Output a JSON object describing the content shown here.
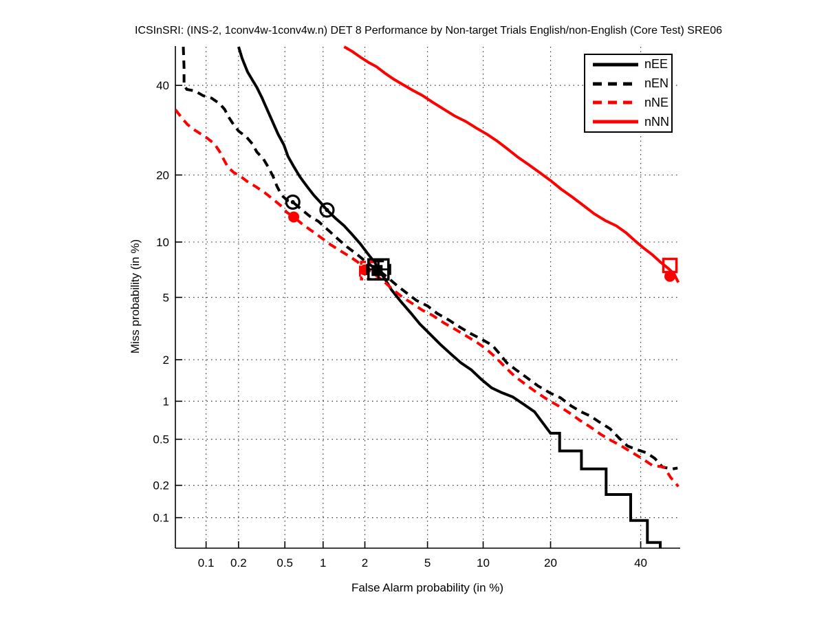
{
  "title": "ICSInSRI: (INS-2, 1conv4w-1conv4w.n) DET 8 Performance by Non-target Trials English/non-English (Core Test) SRE06",
  "legend": {
    "items": [
      {
        "label": "nEE"
      },
      {
        "label": "nEN"
      },
      {
        "label": "nNE"
      },
      {
        "label": "nNN"
      }
    ]
  },
  "chart_data": {
    "type": "line",
    "variant": "DET-curve",
    "title": "ICSInSRI: (INS-2, 1conv4w-1conv4w.n) DET 8 Performance by Non-target Trials English/non-English (Core Test) SRE06",
    "xlabel": "False Alarm probability (in %)",
    "ylabel": "Miss probability (in %)",
    "scale": "probit-probit",
    "grid": "dotted",
    "legend_position": "top-right",
    "x_ticks": [
      0.1,
      0.2,
      0.5,
      1,
      2,
      5,
      10,
      20,
      40
    ],
    "y_ticks": [
      0.1,
      0.2,
      0.5,
      1,
      2,
      5,
      10,
      20,
      40
    ],
    "x_range_pct": [
      0.05,
      50
    ],
    "y_range_pct": [
      0.05,
      50
    ],
    "colors": {
      "black": "#000000",
      "red": "#ff0000"
    },
    "series": [
      {
        "name": "nEE",
        "color": "#000000",
        "style": "solid",
        "points": [
          [
            0.2,
            50
          ],
          [
            0.215,
            47
          ],
          [
            0.24,
            43.5
          ],
          [
            0.27,
            41
          ],
          [
            0.29,
            39.5
          ],
          [
            0.32,
            37
          ],
          [
            0.35,
            34.5
          ],
          [
            0.39,
            31.5
          ],
          [
            0.44,
            28.3
          ],
          [
            0.49,
            26
          ],
          [
            0.53,
            23.6
          ],
          [
            0.59,
            21.6
          ],
          [
            0.66,
            19.7
          ],
          [
            0.75,
            18
          ],
          [
            0.85,
            16.5
          ],
          [
            0.96,
            15.3
          ],
          [
            1.07,
            14.2
          ],
          [
            1.24,
            13
          ],
          [
            1.43,
            12
          ],
          [
            1.63,
            10.9
          ],
          [
            1.86,
            9.8
          ],
          [
            2.1,
            8.7
          ],
          [
            2.35,
            7.8
          ],
          [
            2.5,
            7.1
          ],
          [
            2.75,
            6.3
          ],
          [
            3.0,
            5.55
          ],
          [
            3.4,
            4.8
          ],
          [
            4.0,
            4.0
          ],
          [
            4.5,
            3.45
          ],
          [
            5.2,
            2.95
          ],
          [
            5.9,
            2.55
          ],
          [
            6.75,
            2.2
          ],
          [
            7.7,
            1.9
          ],
          [
            8.7,
            1.7
          ],
          [
            9.8,
            1.45
          ],
          [
            11.0,
            1.26
          ],
          [
            12.3,
            1.16
          ],
          [
            13.8,
            1.08
          ],
          [
            15.3,
            0.96
          ],
          [
            17.2,
            0.83
          ],
          [
            18.7,
            0.67
          ],
          [
            20,
            0.56
          ],
          [
            21.7,
            0.56
          ],
          [
            21.7,
            0.4
          ],
          [
            26.1,
            0.4
          ],
          [
            26.1,
            0.28
          ],
          [
            31.6,
            0.28
          ],
          [
            31.6,
            0.165
          ],
          [
            37.5,
            0.165
          ],
          [
            37.5,
            0.094
          ],
          [
            41.7,
            0.094
          ],
          [
            41.7,
            0.057
          ],
          [
            45,
            0.057
          ],
          [
            45,
            0.05
          ]
        ]
      },
      {
        "name": "nEN",
        "color": "#000000",
        "style": "dashed",
        "points": [
          [
            0.06,
            50
          ],
          [
            0.061,
            44.5
          ],
          [
            0.061,
            40
          ],
          [
            0.065,
            39
          ],
          [
            0.078,
            38.6
          ],
          [
            0.094,
            37.4
          ],
          [
            0.113,
            36.8
          ],
          [
            0.135,
            35.4
          ],
          [
            0.15,
            34
          ],
          [
            0.16,
            32.5
          ],
          [
            0.18,
            30.5
          ],
          [
            0.2,
            29
          ],
          [
            0.235,
            27.7
          ],
          [
            0.265,
            26.2
          ],
          [
            0.29,
            24.5
          ],
          [
            0.33,
            23.1
          ],
          [
            0.365,
            21.4
          ],
          [
            0.4,
            19.7
          ],
          [
            0.43,
            18
          ],
          [
            0.47,
            16.5
          ],
          [
            0.52,
            15.7
          ],
          [
            0.58,
            15.4
          ],
          [
            0.68,
            14.3
          ],
          [
            0.79,
            13.3
          ],
          [
            0.92,
            12.6
          ],
          [
            1.1,
            11.4
          ],
          [
            1.3,
            10.3
          ],
          [
            1.5,
            9.45
          ],
          [
            1.75,
            8.7
          ],
          [
            2.0,
            8.0
          ],
          [
            2.26,
            7.45
          ],
          [
            2.55,
            7.0
          ],
          [
            2.9,
            6.4
          ],
          [
            3.3,
            5.8
          ],
          [
            3.8,
            5.25
          ],
          [
            4.3,
            4.8
          ],
          [
            5.0,
            4.45
          ],
          [
            5.7,
            4.0
          ],
          [
            6.6,
            3.65
          ],
          [
            7.55,
            3.3
          ],
          [
            8.6,
            3.0
          ],
          [
            9.8,
            2.75
          ],
          [
            11.1,
            2.5
          ],
          [
            12.0,
            2.2
          ],
          [
            13.0,
            1.9
          ],
          [
            14.3,
            1.7
          ],
          [
            15.9,
            1.5
          ],
          [
            17.8,
            1.3
          ],
          [
            20,
            1.15
          ],
          [
            21.9,
            1.06
          ],
          [
            24,
            0.92
          ],
          [
            26,
            0.83
          ],
          [
            28,
            0.77
          ],
          [
            30,
            0.69
          ],
          [
            32.5,
            0.61
          ],
          [
            34.7,
            0.51
          ],
          [
            36.7,
            0.44
          ],
          [
            39,
            0.41
          ],
          [
            41.5,
            0.385
          ],
          [
            43.6,
            0.345
          ],
          [
            45.6,
            0.29
          ],
          [
            48.2,
            0.28
          ],
          [
            49.5,
            0.285
          ]
        ]
      },
      {
        "name": "nNE",
        "color": "#ff0000",
        "style": "dashed",
        "points": [
          [
            0.05,
            34
          ],
          [
            0.054,
            33
          ],
          [
            0.06,
            31.6
          ],
          [
            0.066,
            30.5
          ],
          [
            0.077,
            29.3
          ],
          [
            0.09,
            28.3
          ],
          [
            0.103,
            27.4
          ],
          [
            0.12,
            26.2
          ],
          [
            0.135,
            24.5
          ],
          [
            0.148,
            22.8
          ],
          [
            0.16,
            21.5
          ],
          [
            0.18,
            20.5
          ],
          [
            0.21,
            19.7
          ],
          [
            0.24,
            18.8
          ],
          [
            0.285,
            17.9
          ],
          [
            0.335,
            17
          ],
          [
            0.395,
            15.9
          ],
          [
            0.46,
            14.9
          ],
          [
            0.52,
            13.85
          ],
          [
            0.59,
            13.2
          ],
          [
            0.7,
            12.15
          ],
          [
            0.82,
            11.35
          ],
          [
            0.97,
            10.5
          ],
          [
            1.14,
            9.7
          ],
          [
            1.35,
            9.0
          ],
          [
            1.56,
            8.45
          ],
          [
            1.78,
            7.9
          ],
          [
            2.0,
            7.15
          ],
          [
            2.34,
            6.75
          ],
          [
            2.7,
            6.15
          ],
          [
            3.1,
            5.5
          ],
          [
            3.55,
            5.0
          ],
          [
            4.1,
            4.57
          ],
          [
            4.65,
            4.2
          ],
          [
            5.35,
            3.9
          ],
          [
            6.2,
            3.5
          ],
          [
            7.1,
            3.2
          ],
          [
            8.15,
            2.9
          ],
          [
            9.2,
            2.64
          ],
          [
            10.3,
            2.38
          ],
          [
            11.4,
            2.1
          ],
          [
            12.65,
            1.8
          ],
          [
            14.1,
            1.53
          ],
          [
            15.8,
            1.33
          ],
          [
            17.6,
            1.16
          ],
          [
            19.6,
            1.02
          ],
          [
            21.5,
            0.92
          ],
          [
            23.7,
            0.81
          ],
          [
            25.8,
            0.71
          ],
          [
            28,
            0.63
          ],
          [
            30.3,
            0.55
          ],
          [
            32.7,
            0.49
          ],
          [
            35.2,
            0.44
          ],
          [
            37.7,
            0.39
          ],
          [
            40.3,
            0.345
          ],
          [
            43,
            0.3
          ],
          [
            46,
            0.29
          ],
          [
            47.7,
            0.235
          ],
          [
            49.2,
            0.205
          ],
          [
            49.7,
            0.195
          ]
        ]
      },
      {
        "name": "nNN",
        "color": "#ff0000",
        "style": "solid",
        "points": [
          [
            1.43,
            50
          ],
          [
            1.63,
            48.8
          ],
          [
            1.86,
            47.3
          ],
          [
            2.12,
            45.9
          ],
          [
            2.4,
            44.8
          ],
          [
            2.73,
            43.1
          ],
          [
            3.1,
            41.6
          ],
          [
            3.55,
            40.2
          ],
          [
            4.1,
            38.7
          ],
          [
            4.65,
            37.5
          ],
          [
            5.35,
            35.8
          ],
          [
            6.2,
            34.1
          ],
          [
            7.1,
            32.5
          ],
          [
            8.15,
            31.2
          ],
          [
            9.3,
            29.6
          ],
          [
            10.45,
            28.3
          ],
          [
            11.7,
            26.8
          ],
          [
            13.1,
            25.1
          ],
          [
            14.6,
            23.4
          ],
          [
            16.2,
            22
          ],
          [
            18,
            20.5
          ],
          [
            20,
            19
          ],
          [
            22,
            17.5
          ],
          [
            24.2,
            16.2
          ],
          [
            26.5,
            14.9
          ],
          [
            28.9,
            13.65
          ],
          [
            31.4,
            12.7
          ],
          [
            34,
            12
          ],
          [
            36.4,
            11.1
          ],
          [
            38.7,
            10.1
          ],
          [
            40.8,
            9.3
          ],
          [
            43,
            8.6
          ],
          [
            45,
            7.9
          ],
          [
            47.2,
            7.25
          ],
          [
            48.6,
            6.8
          ],
          [
            49.7,
            6.1
          ]
        ]
      }
    ],
    "markers": [
      {
        "shape": "circle-dot",
        "color": "#000000",
        "fa": 0.58,
        "miss": 15.4
      },
      {
        "shape": "circle-dot",
        "color": "#000000",
        "fa": 1.07,
        "miss": 14.2
      },
      {
        "shape": "circle-filled",
        "color": "#ff0000",
        "fa": 0.59,
        "miss": 13.2
      },
      {
        "shape": "errorbar-h",
        "color": "#ff0000",
        "miss": 7.05,
        "fa1": 1.85,
        "fa2": 2.45,
        "dash": true
      },
      {
        "shape": "square-open",
        "color": "#ff0000",
        "fa": 2.16,
        "miss": 7.1,
        "size": 25,
        "dash": true
      },
      {
        "shape": "circle-filled",
        "color": "#ff0000",
        "fa": 2.0,
        "miss": 7.15
      },
      {
        "shape": "errorbar-v",
        "color": "#000000",
        "fa": 2.47,
        "miss1": 6.35,
        "miss2": 7.95
      },
      {
        "shape": "errorbar-h",
        "color": "#000000",
        "miss": 7.2,
        "fa1": 2.07,
        "fa2": 2.95
      },
      {
        "shape": "square-filled",
        "color": "#000000",
        "fa": 2.42,
        "miss": 7.1,
        "size": 16
      },
      {
        "shape": "square-open",
        "color": "#000000",
        "fa": 2.47,
        "miss": 7.2,
        "size": 29
      },
      {
        "shape": "square-open",
        "color": "#ff0000",
        "fa": 47.5,
        "miss": 7.56,
        "size": 19
      },
      {
        "shape": "circle-filled",
        "color": "#ff0000",
        "fa": 47.5,
        "miss": 6.6
      }
    ]
  }
}
